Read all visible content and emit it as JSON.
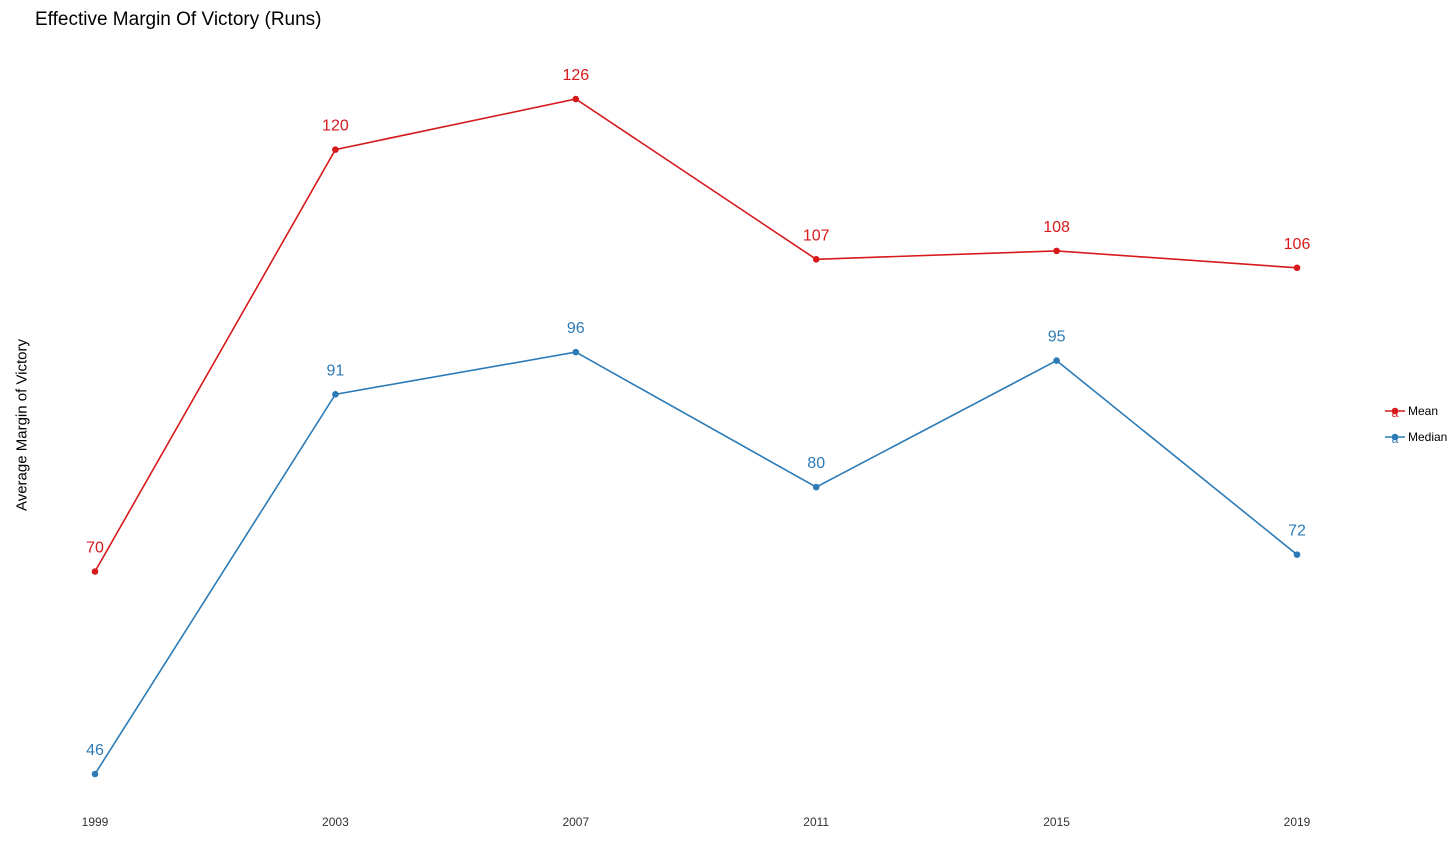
{
  "chart_data": {
    "type": "line",
    "title": "Effective Margin Of Victory (Runs)",
    "xlabel": "",
    "ylabel": "Average Margin of Victory",
    "categories": [
      "1999",
      "2003",
      "2007",
      "2011",
      "2015",
      "2019"
    ],
    "series": [
      {
        "name": "Mean",
        "color": "#d7191c",
        "values": [
          70,
          120,
          126,
          107,
          108,
          106
        ]
      },
      {
        "name": "Median",
        "color": "#2c7bb6",
        "values": [
          46,
          91,
          96,
          80,
          95,
          72
        ]
      }
    ],
    "ylim": [
      46,
      126
    ],
    "grid": false,
    "y_tick_labels_shown": false,
    "legend": "right",
    "legend_key_glyph": "a",
    "data_labels": true
  }
}
